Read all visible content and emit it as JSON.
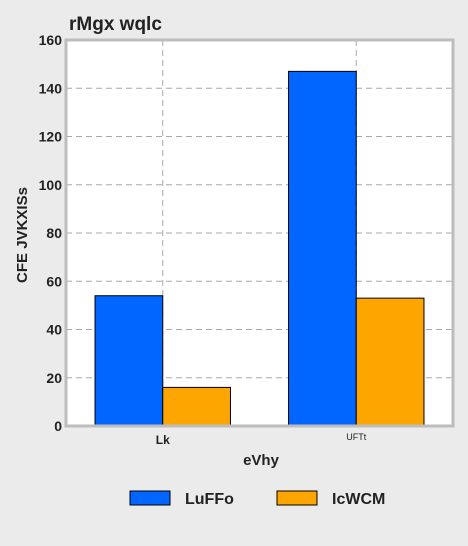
{
  "chart_data": {
    "type": "bar",
    "title": "rMgx wqlc",
    "xlabel": "eVhy",
    "ylabel": "CFE JVKXISs",
    "categories": [
      "Lk",
      "UFTt"
    ],
    "series": [
      {
        "name": "LuFFo",
        "values": [
          54,
          147
        ],
        "color": "#0066ff"
      },
      {
        "name": "IcWCM",
        "values": [
          16,
          53
        ],
        "color": "#ffa500"
      }
    ],
    "ylim": [
      0,
      160
    ],
    "yticks": [
      0,
      20,
      40,
      60,
      80,
      100,
      120,
      140,
      160
    ],
    "grid": true,
    "legend_position": "bottom"
  }
}
